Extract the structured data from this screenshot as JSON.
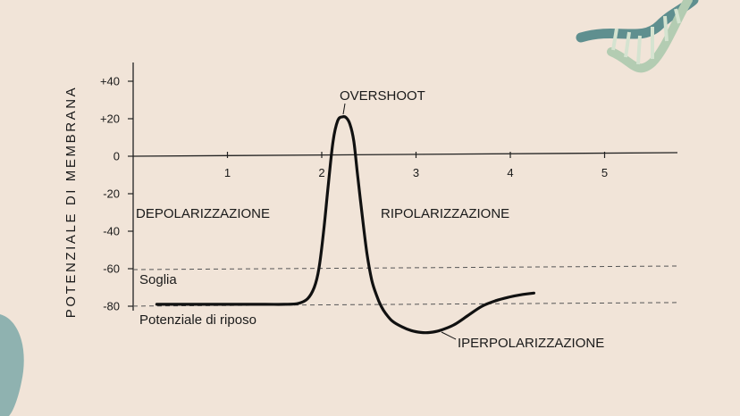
{
  "chart_data": {
    "type": "line",
    "ylabel": "POTENZIALE DI MEMBRANA",
    "xlabel": "",
    "xlim": [
      0,
      5.8
    ],
    "ylim": [
      -85,
      50
    ],
    "x_ticks": [
      "1",
      "2",
      "3",
      "4",
      "5"
    ],
    "y_ticks": [
      "+40",
      "+20",
      "0",
      "-20",
      "-40",
      "-60",
      "-80"
    ],
    "series": [
      {
        "x": [
          0.25,
          0.6,
          1.0,
          1.4,
          1.6,
          1.75,
          1.85,
          1.92,
          1.97,
          2.02,
          2.07,
          2.12,
          2.17,
          2.22,
          2.26,
          2.3,
          2.34,
          2.38,
          2.43,
          2.48,
          2.53,
          2.58,
          2.63,
          2.68,
          2.75,
          2.85,
          2.95,
          3.05,
          3.15,
          3.25,
          3.4,
          3.55,
          3.7,
          3.85,
          4.0,
          4.1,
          4.25
        ],
        "y": [
          -79,
          -79,
          -79,
          -79,
          -79,
          -78.5,
          -76,
          -70,
          -60,
          -40,
          -15,
          8,
          19,
          21,
          20.5,
          17,
          8,
          -10,
          -32,
          -52,
          -66,
          -74,
          -80,
          -84,
          -88,
          -91,
          -93,
          -94,
          -94,
          -93,
          -90,
          -85,
          -80,
          -77,
          -75,
          -74,
          -73
        ]
      }
    ],
    "reference_lines": [
      {
        "y": -60,
        "label": "Soglia",
        "style": "dashed"
      },
      {
        "y": -79,
        "label": "Potenziale di riposo",
        "style": "dashed"
      }
    ],
    "annotations": [
      {
        "text": "OVERSHOOT"
      },
      {
        "text": "DEPOLARIZZAZIONE"
      },
      {
        "text": "RIPOLARIZZAZIONE"
      },
      {
        "text": "IPERPOLARIZZAZIONE"
      }
    ],
    "grid": false,
    "colors": {
      "curve": "#111111",
      "axis": "#222222",
      "reference": "#444444",
      "background": "#f1e4d8"
    }
  },
  "decor": {
    "dna_icon": "dna-helix-icon",
    "blob": "teal-blob-shape"
  }
}
